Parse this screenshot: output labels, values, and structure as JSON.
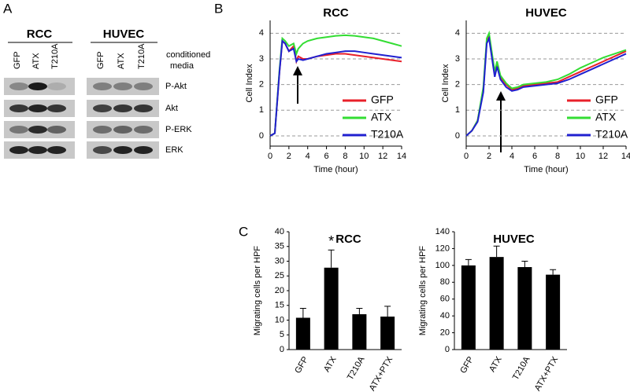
{
  "panel_labels": [
    "A",
    "B",
    "C"
  ],
  "blot": {
    "groups": [
      "RCC",
      "HUVEC"
    ],
    "lanes": [
      "GFP",
      "ATX",
      "T210A",
      "GFP",
      "ATX",
      "T210A"
    ],
    "condition_label": [
      "conditioned",
      "media"
    ],
    "rows": [
      "P-Akt",
      "Akt",
      "P-ERK",
      "ERK"
    ]
  },
  "chart_data": [
    {
      "type": "line",
      "title": "RCC",
      "x_label": "Time (hour)",
      "y_label": "Cell Index",
      "x": [
        0,
        0.5,
        1,
        1.3,
        1.6,
        2,
        2.5,
        2.8,
        3,
        3.5,
        4,
        5,
        6,
        7,
        8,
        9,
        10,
        11,
        12,
        13,
        14
      ],
      "series": [
        {
          "name": "GFP",
          "color": "#e8202a",
          "values": [
            0,
            0.1,
            2.5,
            3.7,
            3.6,
            3.3,
            3.5,
            2.9,
            3.1,
            3.0,
            3.0,
            3.1,
            3.15,
            3.2,
            3.2,
            3.15,
            3.1,
            3.05,
            3.0,
            2.95,
            2.9
          ]
        },
        {
          "name": "ATX",
          "color": "#33dd33",
          "values": [
            0,
            0.1,
            2.6,
            3.8,
            3.7,
            3.5,
            3.6,
            3.2,
            3.4,
            3.6,
            3.7,
            3.8,
            3.85,
            3.9,
            3.92,
            3.9,
            3.85,
            3.8,
            3.7,
            3.6,
            3.5
          ]
        },
        {
          "name": "T210A",
          "color": "#2020d0",
          "values": [
            0,
            0.1,
            2.5,
            3.7,
            3.6,
            3.3,
            3.4,
            2.9,
            3.0,
            2.95,
            3.0,
            3.1,
            3.2,
            3.25,
            3.3,
            3.3,
            3.25,
            3.2,
            3.15,
            3.1,
            3.05
          ]
        }
      ],
      "xlim": [
        0,
        14
      ],
      "xticks": [
        0,
        2,
        4,
        6,
        8,
        10,
        12,
        14
      ],
      "ylim": [
        -0.4,
        4.5
      ],
      "yticks": [
        0,
        1,
        2,
        3,
        4
      ],
      "grid": true,
      "legend": "lower right"
    },
    {
      "type": "line",
      "title": "HUVEC",
      "x_label": "Time (hour)",
      "y_label": "Cell Index",
      "x": [
        0,
        0.5,
        1,
        1.5,
        1.8,
        2,
        2.5,
        2.7,
        3,
        3.5,
        4,
        4.5,
        5,
        6,
        7,
        8,
        9,
        10,
        11,
        12,
        13,
        14
      ],
      "series": [
        {
          "name": "GFP",
          "color": "#e8202a",
          "values": [
            0,
            0.2,
            0.6,
            1.8,
            3.7,
            3.9,
            2.4,
            2.8,
            2.3,
            2.0,
            1.8,
            1.85,
            1.95,
            2.0,
            2.05,
            2.1,
            2.3,
            2.5,
            2.7,
            2.9,
            3.1,
            3.3
          ]
        },
        {
          "name": "ATX",
          "color": "#33dd33",
          "values": [
            0,
            0.2,
            0.6,
            1.9,
            3.8,
            4.0,
            2.5,
            2.9,
            2.35,
            2.05,
            1.85,
            1.9,
            2.0,
            2.05,
            2.1,
            2.2,
            2.4,
            2.65,
            2.85,
            3.05,
            3.2,
            3.35
          ]
        },
        {
          "name": "T210A",
          "color": "#2020d0",
          "values": [
            0,
            0.2,
            0.55,
            1.7,
            3.6,
            3.8,
            2.3,
            2.7,
            2.2,
            1.9,
            1.75,
            1.8,
            1.9,
            1.95,
            2.0,
            2.05,
            2.2,
            2.4,
            2.6,
            2.8,
            3.0,
            3.2
          ]
        }
      ],
      "xlim": [
        0,
        14
      ],
      "xticks": [
        0,
        2,
        4,
        6,
        8,
        10,
        12,
        14
      ],
      "ylim": [
        -0.4,
        4.5
      ],
      "yticks": [
        0,
        1,
        2,
        3,
        4
      ],
      "grid": true,
      "legend": "lower right"
    },
    {
      "type": "bar",
      "title": "RCC",
      "y_label": "Migrating cells per HPF",
      "annotation": "*",
      "categories": [
        "GFP",
        "ATX",
        "T210A",
        "ATX+PTX"
      ],
      "values": [
        10.8,
        27.8,
        12,
        11.2
      ],
      "errors": [
        3.2,
        6,
        2,
        3.5
      ],
      "color": "#000000",
      "ylim": [
        0,
        40
      ],
      "yticks": [
        0,
        5,
        10,
        15,
        20,
        25,
        30,
        35,
        40
      ],
      "grid": false
    },
    {
      "type": "bar",
      "title": "HUVEC",
      "y_label": "Migrating cells per HPF",
      "categories": [
        "GFP",
        "ATX",
        "T210A",
        "ATX+PTX"
      ],
      "values": [
        100,
        110,
        98,
        89
      ],
      "errors": [
        7,
        13,
        7,
        6
      ],
      "color": "#000000",
      "ylim": [
        0,
        140
      ],
      "yticks": [
        0,
        20,
        40,
        60,
        80,
        100,
        120,
        140
      ],
      "grid": false
    }
  ]
}
